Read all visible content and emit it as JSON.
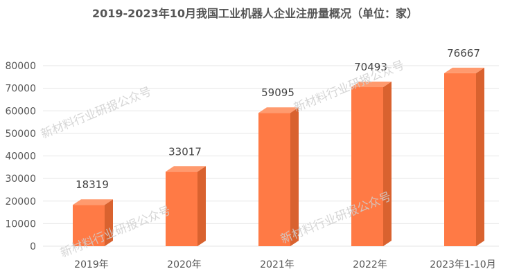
{
  "title": "2019-2023年10月我国工业机器人企业注册量概况（单位：家）",
  "watermark": "新材料行业研报公众号",
  "colors": {
    "bar_front": "#FF7A45",
    "bar_side": "#D9622F",
    "bar_top": "#FF9A6E",
    "grid": "#e6e6e6",
    "text": "#555555"
  },
  "chart_data": {
    "type": "bar",
    "categories": [
      "2019年",
      "2020年",
      "2021年",
      "2022年",
      "2023年1-10月"
    ],
    "values": [
      18319,
      33017,
      59095,
      70493,
      76667
    ],
    "ylim": [
      0,
      80000
    ],
    "yticks": [
      0,
      10000,
      20000,
      30000,
      40000,
      50000,
      60000,
      70000,
      80000
    ],
    "grid": true,
    "xlabel": "",
    "ylabel": ""
  }
}
